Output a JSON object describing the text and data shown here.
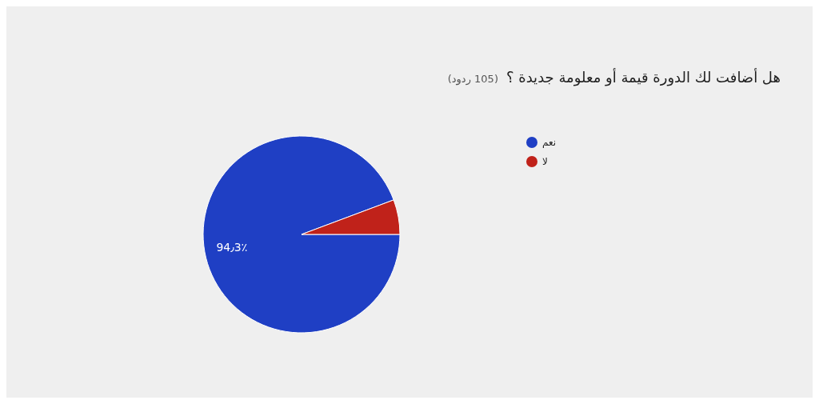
{
  "chart_data": {
    "type": "pie",
    "title": "هل أضافت لك الدورة قيمة أو معلومة جديدة ؟",
    "subtitle": "(105 ردود)",
    "categories": [
      "نعم",
      "لا"
    ],
    "values": [
      94.3,
      5.7
    ],
    "colors": [
      "#1f3fc4",
      "#c0221a"
    ],
    "value_labels": [
      "94٫3٪",
      null
    ],
    "legend": "right"
  }
}
